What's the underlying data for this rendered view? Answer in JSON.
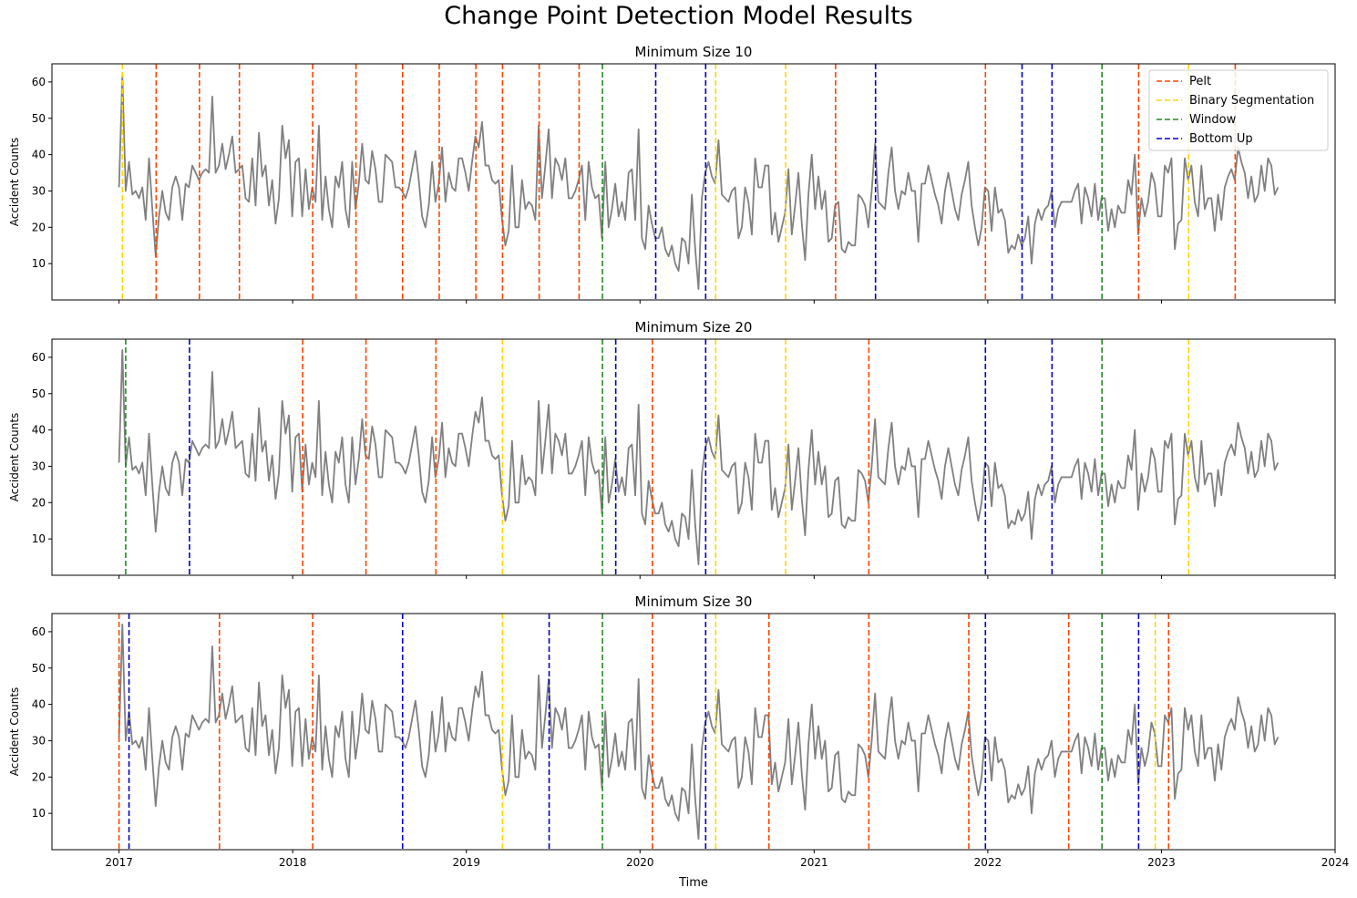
{
  "figure": {
    "title": "Change Point Detection Model Results",
    "xlabel": "Time",
    "ylabel": "Accident Counts"
  },
  "chart_data": {
    "type": "line",
    "title": "Change Point Detection Model Results",
    "xlabel": "Time",
    "ylabel": "Accident Counts",
    "xlim": [
      "2016-08-13",
      "2024-01-01"
    ],
    "ylim": [
      0,
      65
    ],
    "x_ticks": [
      "2017",
      "2018",
      "2019",
      "2020",
      "2021",
      "2022",
      "2023",
      "2024"
    ],
    "y_ticks": [
      10,
      20,
      30,
      40,
      50,
      60
    ],
    "legend": {
      "position": "top-right",
      "entries": [
        {
          "label": "Pelt",
          "color": "#ff4500",
          "style": "dashed"
        },
        {
          "label": "Binary Segmentation",
          "color": "#ffd700",
          "style": "dashed"
        },
        {
          "label": "Window",
          "color": "#228b22",
          "style": "dashed"
        },
        {
          "label": "Bottom Up",
          "color": "#0000cd",
          "style": "dashed"
        }
      ]
    },
    "series": {
      "color": "#808080",
      "start": "2017-01-01",
      "frequency": "weekly",
      "values": [
        31,
        62,
        30,
        38,
        29,
        30,
        28,
        31,
        22,
        39,
        25,
        12,
        23,
        30,
        24,
        22,
        31,
        34,
        31,
        22,
        32,
        31,
        37,
        35,
        33,
        35,
        36,
        35,
        56,
        35,
        37,
        43,
        36,
        40,
        45,
        35,
        36,
        37,
        28,
        27,
        39,
        26,
        46,
        34,
        37,
        26,
        33,
        21,
        28,
        48,
        39,
        44,
        23,
        38,
        39,
        23,
        36,
        25,
        31,
        27,
        48,
        22,
        34,
        25,
        20,
        34,
        31,
        38,
        25,
        20,
        38,
        25,
        32,
        43,
        33,
        32,
        41,
        36,
        27,
        27,
        40,
        39,
        38,
        31,
        31,
        30,
        28,
        31,
        36,
        41,
        33,
        23,
        20,
        26,
        38,
        27,
        32,
        42,
        27,
        35,
        31,
        30,
        39,
        39,
        35,
        30,
        38,
        45,
        42,
        49,
        37,
        37,
        33,
        32,
        33,
        22,
        15,
        19,
        37,
        20,
        20,
        33,
        25,
        27,
        26,
        22,
        48,
        28,
        37,
        47,
        28,
        39,
        37,
        33,
        39,
        28,
        28,
        30,
        33,
        37,
        22,
        38,
        31,
        28,
        29,
        17,
        38,
        20,
        25,
        32,
        23,
        27,
        22,
        35,
        36,
        22,
        47,
        17,
        14,
        26,
        21,
        17,
        17,
        20,
        14,
        12,
        15,
        10,
        8,
        17,
        16,
        10,
        29,
        14,
        3,
        28,
        35,
        38,
        34,
        32,
        44,
        29,
        28,
        27,
        30,
        31,
        17,
        20,
        31,
        27,
        18,
        39,
        31,
        31,
        37,
        37,
        18,
        24,
        16,
        20,
        24,
        36,
        18,
        26,
        35,
        21,
        11,
        29,
        40,
        25,
        34,
        25,
        30,
        16,
        17,
        26,
        27,
        14,
        13,
        16,
        15,
        15,
        29,
        28,
        26,
        20,
        30,
        43,
        27,
        26,
        25,
        35,
        42,
        30,
        25,
        30,
        29,
        35,
        30,
        30,
        16,
        32,
        32,
        37,
        33,
        29,
        26,
        21,
        30,
        35,
        30,
        25,
        22,
        29,
        33,
        38,
        26,
        20,
        15,
        20,
        31,
        30,
        19,
        31,
        24,
        25,
        22,
        13,
        15,
        14,
        18,
        15,
        17,
        23,
        10,
        21,
        25,
        22,
        25,
        26,
        30,
        20,
        25,
        27,
        27,
        27,
        27,
        30,
        32,
        21,
        31,
        28,
        23,
        32,
        22,
        28,
        28,
        19,
        25,
        20,
        26,
        24,
        24,
        33,
        29,
        40,
        18,
        28,
        23,
        27,
        35,
        32,
        23,
        23,
        37,
        35,
        39,
        14,
        21,
        22,
        39,
        33,
        37,
        27,
        23,
        37,
        25,
        28,
        28,
        19,
        29,
        22,
        31,
        34,
        36,
        33,
        42,
        38,
        35,
        28,
        34,
        27,
        29,
        37,
        30,
        39,
        37,
        29,
        31
      ]
    },
    "subplots": [
      {
        "title": "Minimum Size 10",
        "change_points": {
          "Pelt": [
            "2017-03-20",
            "2017-06-19",
            "2017-09-11",
            "2018-02-12",
            "2018-05-14",
            "2018-08-20",
            "2018-11-05",
            "2019-01-21",
            "2019-03-18",
            "2019-06-03",
            "2019-08-26",
            "2021-02-15",
            "2021-12-27",
            "2022-11-14",
            "2023-06-05"
          ],
          "Binary Segmentation": [
            "2017-01-08",
            "2020-06-08",
            "2020-11-02",
            "2023-02-27"
          ],
          "Window": [
            "2019-10-14",
            "2022-08-29"
          ],
          "Bottom Up": [
            "2020-02-03",
            "2020-05-18",
            "2021-05-10",
            "2022-03-14",
            "2022-05-16"
          ]
        }
      },
      {
        "title": "Minimum Size 20",
        "change_points": {
          "Pelt": [
            "2018-01-22",
            "2018-06-04",
            "2018-10-29",
            "2020-01-27",
            "2021-04-26"
          ],
          "Binary Segmentation": [
            "2019-03-18",
            "2020-06-08",
            "2020-11-02",
            "2023-02-27"
          ],
          "Window": [
            "2017-01-15",
            "2019-10-14",
            "2022-08-29"
          ],
          "Bottom Up": [
            "2017-05-29",
            "2019-11-11",
            "2020-05-18",
            "2021-12-27",
            "2022-05-16"
          ]
        }
      },
      {
        "title": "Minimum Size 30",
        "change_points": {
          "Pelt": [
            "2017-01-01",
            "2017-07-31",
            "2018-02-12",
            "2020-01-27",
            "2020-09-28",
            "2021-04-26",
            "2021-11-22",
            "2022-06-20",
            "2023-01-16"
          ],
          "Binary Segmentation": [
            "2019-03-18",
            "2020-06-08",
            "2022-12-19"
          ],
          "Window": [
            "2019-10-14",
            "2022-08-29"
          ],
          "Bottom Up": [
            "2017-01-22",
            "2018-08-20",
            "2019-06-24",
            "2020-05-18",
            "2021-12-27",
            "2022-11-14"
          ]
        }
      }
    ]
  }
}
